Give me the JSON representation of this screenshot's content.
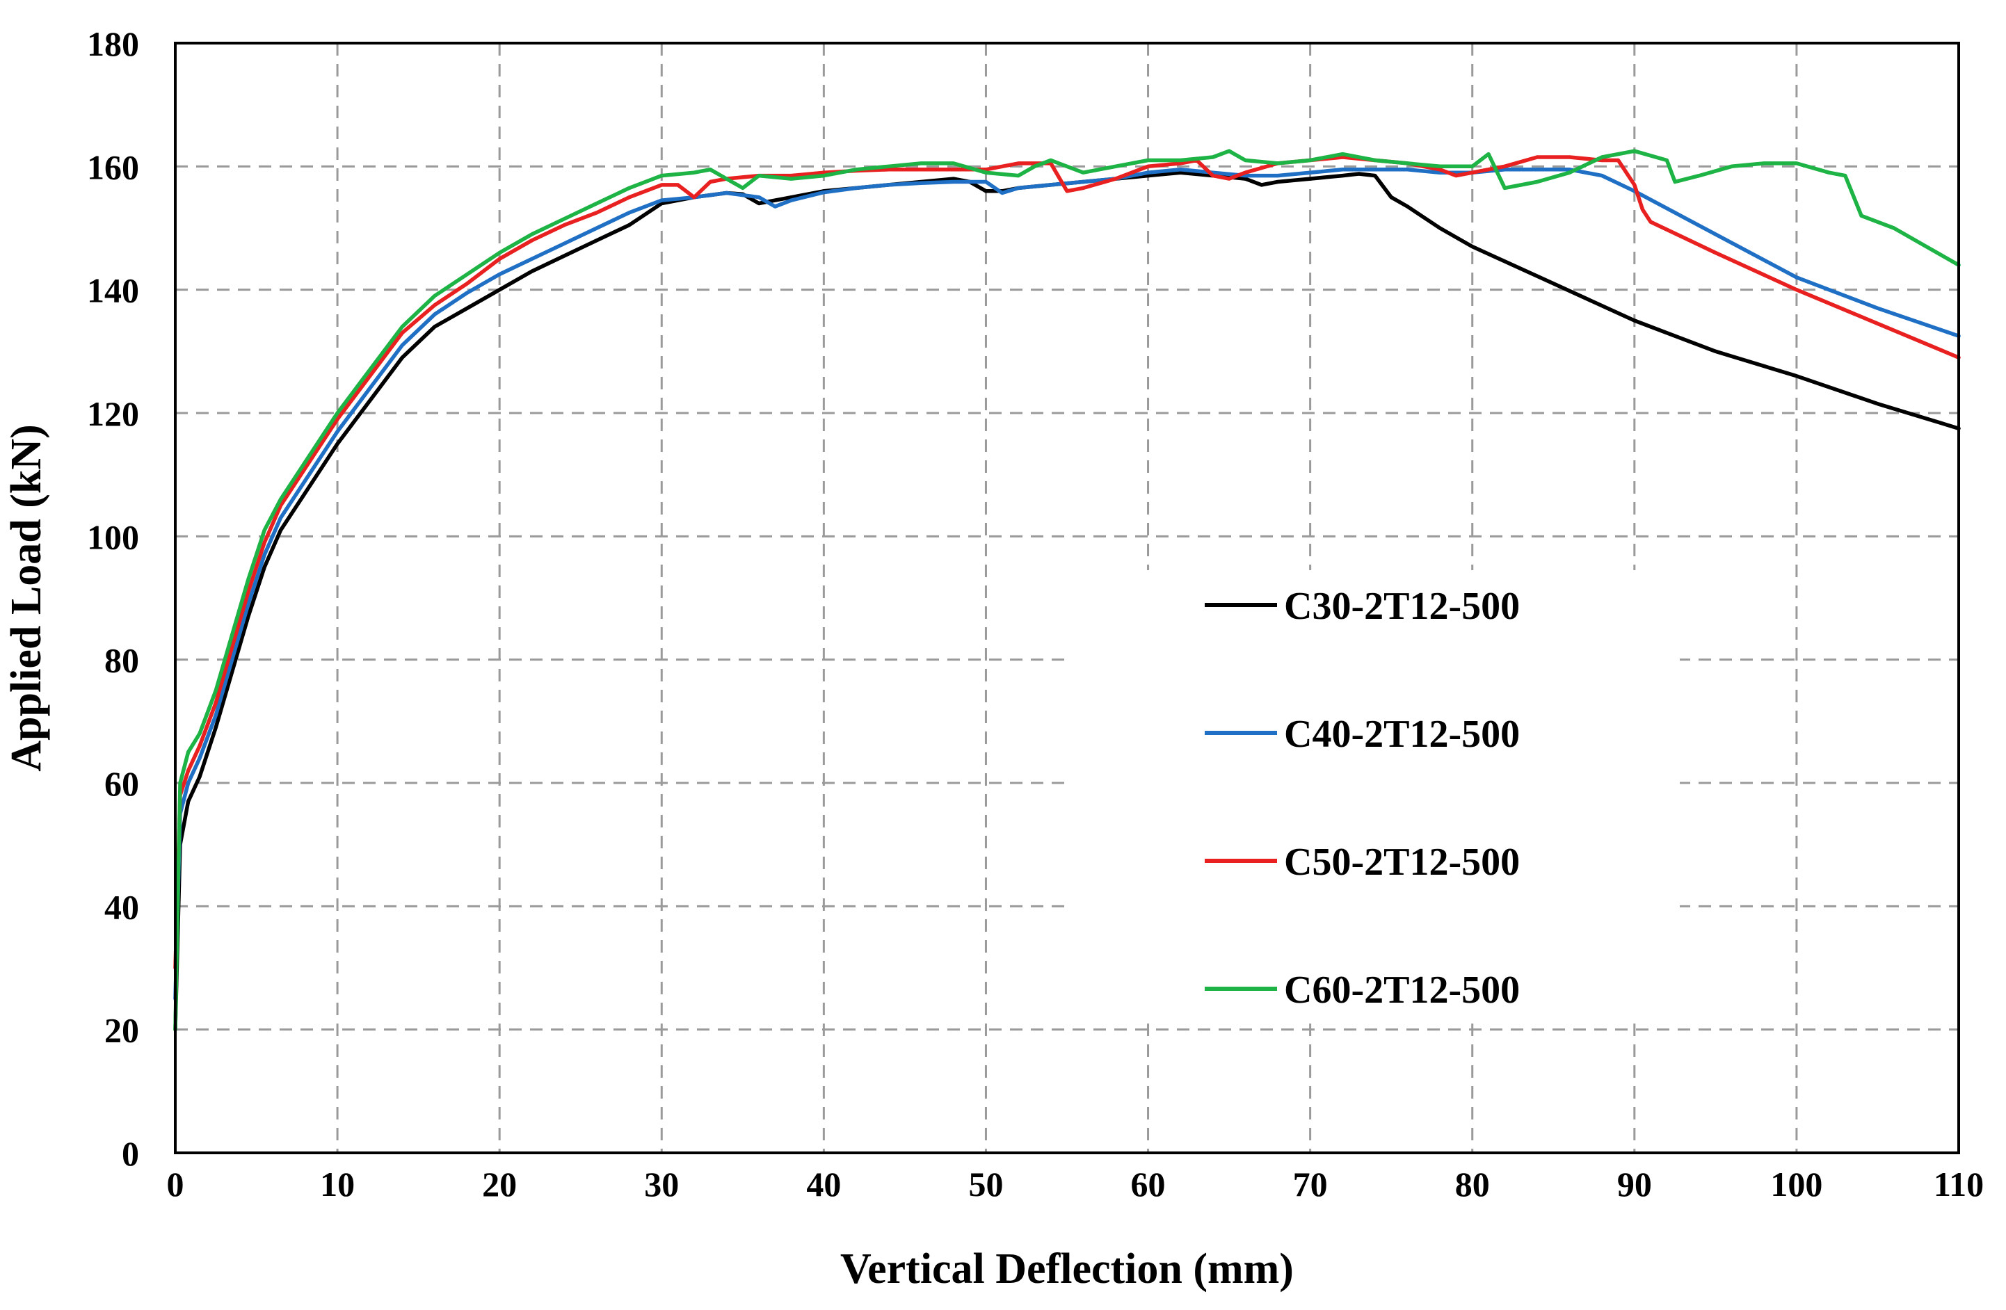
{
  "chart_data": {
    "type": "line",
    "title": "",
    "xlabel": "Vertical Deflection (mm)",
    "ylabel": "Applied Load (kN)",
    "xlim": [
      0,
      110
    ],
    "ylim": [
      0,
      180
    ],
    "xticks": [
      0,
      10,
      20,
      30,
      40,
      50,
      60,
      70,
      80,
      90,
      100,
      110
    ],
    "yticks": [
      0,
      20,
      40,
      60,
      80,
      100,
      120,
      140,
      160,
      180
    ],
    "grid": true,
    "legend_position": "center-right",
    "series": [
      {
        "name": "C30-2T12-500",
        "color": "#000000",
        "x": [
          0,
          0.3,
          0.8,
          1.5,
          2.5,
          3.5,
          4.5,
          5.5,
          6.5,
          8,
          10,
          12,
          14,
          16,
          18,
          20,
          22,
          24,
          26,
          28,
          30,
          32,
          34,
          35,
          36,
          37,
          38,
          40,
          42,
          44,
          46,
          48,
          49,
          50,
          51,
          52,
          54,
          56,
          58,
          60,
          62,
          64,
          66,
          67,
          68,
          70,
          72,
          73,
          74,
          75,
          76,
          78,
          80,
          85,
          90,
          95,
          100,
          105,
          110
        ],
        "y": [
          20,
          50,
          57,
          61,
          69,
          78,
          87,
          95,
          101,
          107,
          115,
          122,
          129,
          134,
          137,
          140,
          143,
          145.5,
          148,
          150.5,
          154,
          155,
          155.7,
          155.5,
          154,
          154.5,
          155,
          156,
          156.5,
          157,
          157.5,
          158,
          157.5,
          156,
          156,
          156.5,
          157,
          157.5,
          158,
          158.5,
          159,
          158.5,
          158,
          157,
          157.5,
          158,
          158.5,
          158.8,
          158.5,
          155,
          153.5,
          150,
          147,
          141,
          135,
          130,
          126,
          121.5,
          117.5
        ]
      },
      {
        "name": "C40-2T12-500",
        "color": "#1f6fc5",
        "x": [
          0,
          0.3,
          0.8,
          1.5,
          2.5,
          3.5,
          4.5,
          5.5,
          6.5,
          8,
          10,
          12,
          14,
          16,
          18,
          20,
          22,
          24,
          26,
          28,
          30,
          32,
          34,
          36,
          37,
          38,
          40,
          42,
          44,
          46,
          48,
          50,
          51,
          52,
          54,
          56,
          58,
          60,
          62,
          64,
          66,
          68,
          70,
          72,
          74,
          76,
          78,
          80,
          82,
          84,
          86,
          88,
          90,
          95,
          100,
          105,
          110
        ],
        "y": [
          25,
          55,
          60,
          64,
          71,
          80,
          89,
          97,
          103,
          109,
          117,
          124,
          131,
          136,
          139.5,
          142.5,
          145,
          147.5,
          150,
          152.5,
          154.5,
          155,
          155.7,
          155,
          153.5,
          154.5,
          155.8,
          156.5,
          157,
          157.3,
          157.5,
          157.5,
          155.7,
          156.5,
          157,
          157.5,
          158,
          159,
          159.5,
          159,
          158.5,
          158.5,
          159,
          159.5,
          159.5,
          159.5,
          159,
          159,
          159.5,
          159.5,
          159.5,
          158.5,
          156,
          149,
          142,
          137,
          132.5
        ]
      },
      {
        "name": "C50-2T12-500",
        "color": "#e82020",
        "x": [
          0,
          0.3,
          0.8,
          1.5,
          2.5,
          3.5,
          4.5,
          5.5,
          6.5,
          8,
          10,
          12,
          14,
          16,
          18,
          20,
          22,
          24,
          26,
          28,
          30,
          31,
          32,
          33,
          34,
          36,
          38,
          40,
          42,
          44,
          46,
          48,
          50,
          52,
          54,
          55,
          56,
          58,
          60,
          62,
          63,
          64,
          65,
          66,
          68,
          70,
          72,
          74,
          76,
          78,
          79,
          80,
          82,
          84,
          86,
          88,
          89,
          90,
          90.5,
          91,
          95,
          100,
          105,
          110
        ],
        "y": [
          30,
          58,
          62,
          66,
          73,
          82,
          91,
          99,
          105,
          111,
          119,
          126,
          133,
          137.5,
          141,
          145,
          148,
          150.5,
          152.5,
          155,
          157,
          157,
          155,
          157.5,
          158,
          158.5,
          158.5,
          159,
          159.3,
          159.5,
          159.5,
          159.5,
          159.5,
          160.5,
          160.5,
          156,
          156.5,
          158,
          160,
          160.5,
          161,
          158.5,
          158,
          159,
          160.5,
          161,
          161.5,
          161,
          160.5,
          159.5,
          158.5,
          159,
          160,
          161.5,
          161.5,
          161,
          161,
          157,
          153,
          151,
          146,
          140,
          134.5,
          129
        ]
      },
      {
        "name": "C60-2T12-500",
        "color": "#1db345",
        "x": [
          0,
          0.3,
          0.8,
          1.5,
          2.5,
          3.5,
          4.5,
          5.5,
          6.5,
          8,
          10,
          12,
          14,
          16,
          18,
          20,
          22,
          24,
          26,
          28,
          30,
          32,
          33,
          34,
          35,
          36,
          38,
          40,
          42,
          44,
          46,
          48,
          50,
          52,
          53,
          54,
          56,
          58,
          60,
          62,
          64,
          65,
          66,
          68,
          70,
          72,
          74,
          76,
          78,
          80,
          81,
          82,
          84,
          86,
          88,
          90,
          92,
          92.5,
          94,
          96,
          98,
          100,
          102,
          103,
          104,
          106,
          108,
          110
        ],
        "y": [
          20,
          60,
          65,
          68,
          75,
          84,
          93,
          101,
          106,
          112,
          120,
          127,
          134,
          139,
          142.5,
          146,
          149,
          151.5,
          154,
          156.5,
          158.5,
          159,
          159.5,
          158,
          156.5,
          158.5,
          158,
          158.5,
          159.5,
          160,
          160.5,
          160.5,
          159,
          158.5,
          160,
          161,
          159,
          160,
          161,
          161,
          161.5,
          162.5,
          161,
          160.5,
          161,
          162,
          161,
          160.5,
          160,
          160,
          162,
          156.5,
          157.5,
          159,
          161.5,
          162.5,
          161,
          157.5,
          158.5,
          160,
          160.5,
          160.5,
          159,
          158.5,
          152,
          150,
          147,
          144
        ]
      }
    ]
  }
}
